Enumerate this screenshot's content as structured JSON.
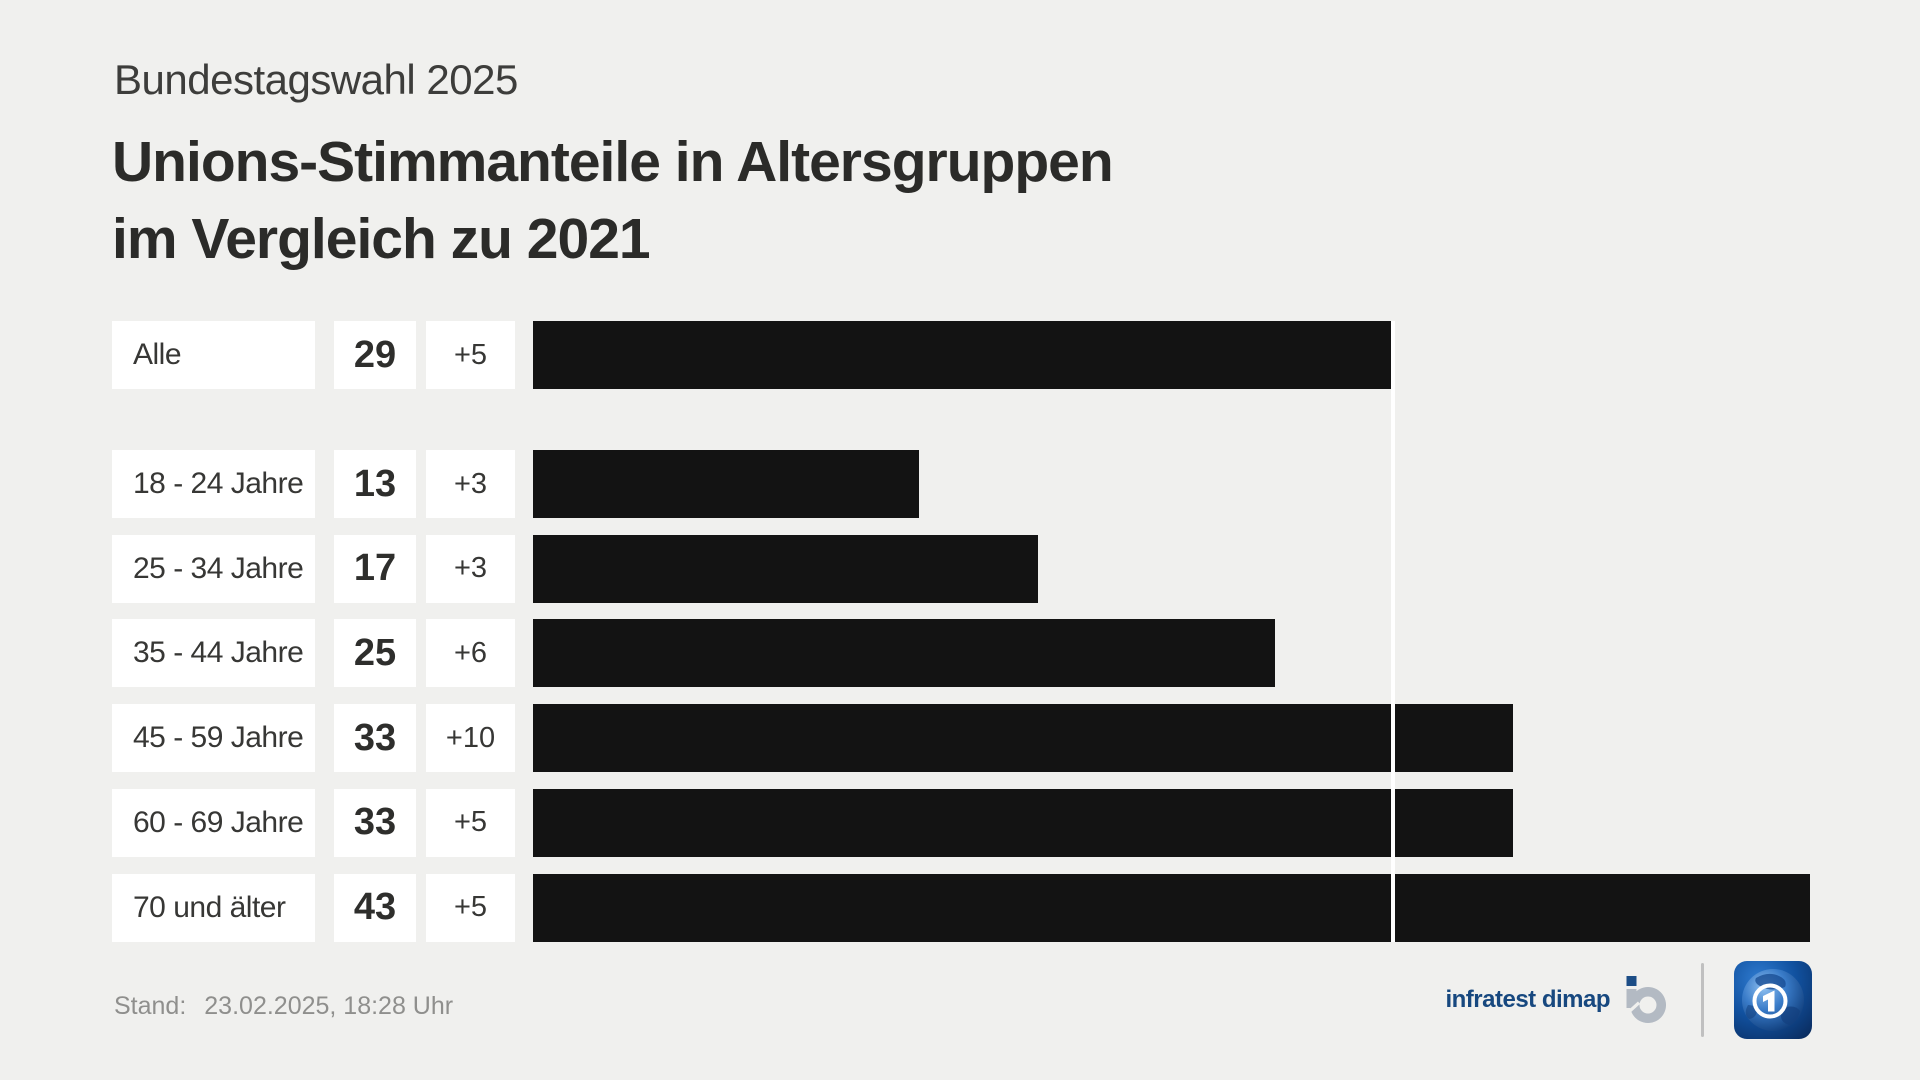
{
  "header": {
    "kicker": "Bundestagswahl 2025",
    "title_line1": "Unions-Stimmanteile in Altersgruppen",
    "title_line2": "im Vergleich zu 2021"
  },
  "chart_data": {
    "type": "bar",
    "orientation": "horizontal",
    "title": "Unions-Stimmanteile in Altersgruppen im Vergleich zu 2021",
    "categories": [
      "Alle",
      "18 - 24 Jahre",
      "25 - 34 Jahre",
      "35 - 44 Jahre",
      "45 - 59 Jahre",
      "60 - 69 Jahre",
      "70 und älter"
    ],
    "values": [
      29,
      13,
      17,
      25,
      33,
      33,
      43
    ],
    "changes": [
      "+5",
      "+3",
      "+3",
      "+6",
      "+10",
      "+5",
      "+5"
    ],
    "unit": "Prozent",
    "reference_value": 29,
    "xlim": [
      0,
      46.7
    ],
    "grid": false,
    "bar_color": "#131313",
    "reference_line_color": "#ffffff"
  },
  "footer": {
    "stand_label": "Stand:",
    "stand_value": "23.02.2025, 18:28 Uhr",
    "source_label": "infratest dimap"
  },
  "icons": {
    "infratest_mark": "infratest-dimap-mark",
    "ard": "ard-one-globe-logo"
  },
  "colors": {
    "background": "#f0f0ee",
    "box": "#ffffff",
    "bar": "#131313",
    "text_dark": "#2b2b29",
    "text_label": "#373735",
    "text_muted": "#8f8f8d",
    "brand_navy": "#17487f",
    "logo_gray": "#b3bac3",
    "separator": "#c0c0c0"
  }
}
